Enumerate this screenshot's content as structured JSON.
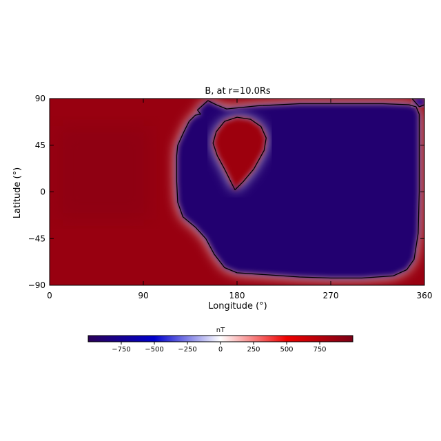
{
  "chart_data": {
    "type": "heatmap",
    "title": "B, at r=10.0Rs",
    "xlabel": "Longitude (°)",
    "ylabel": "Latitude (°)",
    "xlim": [
      0,
      360
    ],
    "ylim": [
      -90,
      90
    ],
    "x_ticks": [
      {
        "value": 0,
        "label": "0"
      },
      {
        "value": 90,
        "label": "90"
      },
      {
        "value": 180,
        "label": "180"
      },
      {
        "value": 270,
        "label": "270"
      },
      {
        "value": 360,
        "label": "360"
      }
    ],
    "y_ticks": [
      {
        "value": -90,
        "label": "−90"
      },
      {
        "value": -45,
        "label": "−45"
      },
      {
        "value": 0,
        "label": "0"
      },
      {
        "value": 45,
        "label": "45"
      },
      {
        "value": 90,
        "label": "90"
      }
    ],
    "colorbar": {
      "label": "nT",
      "range": [
        -1000,
        1000
      ],
      "colors": [
        "#2a0058",
        "#0000cc",
        "#ffffff",
        "#ee0000",
        "#7a0016"
      ],
      "ticks": [
        {
          "value": -750,
          "label": "−750"
        },
        {
          "value": -500,
          "label": "−500"
        },
        {
          "value": -250,
          "label": "−250"
        },
        {
          "value": 0,
          "label": "0"
        },
        {
          "value": 250,
          "label": "250"
        },
        {
          "value": 500,
          "label": "500"
        },
        {
          "value": 750,
          "label": "750"
        }
      ]
    },
    "regions": {
      "negative_main": {
        "value": -900,
        "boundary": [
          [
            152,
            88
          ],
          [
            160,
            84
          ],
          [
            170,
            80
          ],
          [
            200,
            83
          ],
          [
            240,
            85
          ],
          [
            280,
            85
          ],
          [
            320,
            85
          ],
          [
            345,
            84
          ],
          [
            352,
            82
          ],
          [
            355,
            75
          ],
          [
            355,
            45
          ],
          [
            355,
            0
          ],
          [
            354,
            -40
          ],
          [
            350,
            -65
          ],
          [
            343,
            -75
          ],
          [
            330,
            -81
          ],
          [
            300,
            -83
          ],
          [
            270,
            -83
          ],
          [
            240,
            -82
          ],
          [
            210,
            -80
          ],
          [
            180,
            -78
          ],
          [
            168,
            -73
          ],
          [
            158,
            -60
          ],
          [
            150,
            -45
          ],
          [
            140,
            -34
          ],
          [
            128,
            -24
          ],
          [
            123,
            -10
          ],
          [
            122,
            10
          ],
          [
            122,
            35
          ],
          [
            123,
            45
          ],
          [
            129,
            58
          ],
          [
            134,
            68
          ],
          [
            140,
            74
          ],
          [
            145,
            75
          ],
          [
            142,
            79
          ]
        ]
      },
      "positive_island": {
        "value": 850,
        "boundary": [
          [
            178,
            2
          ],
          [
            186,
            10
          ],
          [
            196,
            22
          ],
          [
            206,
            40
          ],
          [
            208,
            52
          ],
          [
            203,
            63
          ],
          [
            193,
            70
          ],
          [
            180,
            72
          ],
          [
            168,
            68
          ],
          [
            160,
            58
          ],
          [
            157,
            47
          ],
          [
            161,
            35
          ],
          [
            168,
            22
          ],
          [
            174,
            10
          ]
        ]
      },
      "negative_top_right": {
        "value": -700,
        "boundary": [
          [
            355,
            82
          ],
          [
            360,
            84
          ],
          [
            360,
            90
          ],
          [
            348,
            90
          ]
        ]
      }
    }
  }
}
